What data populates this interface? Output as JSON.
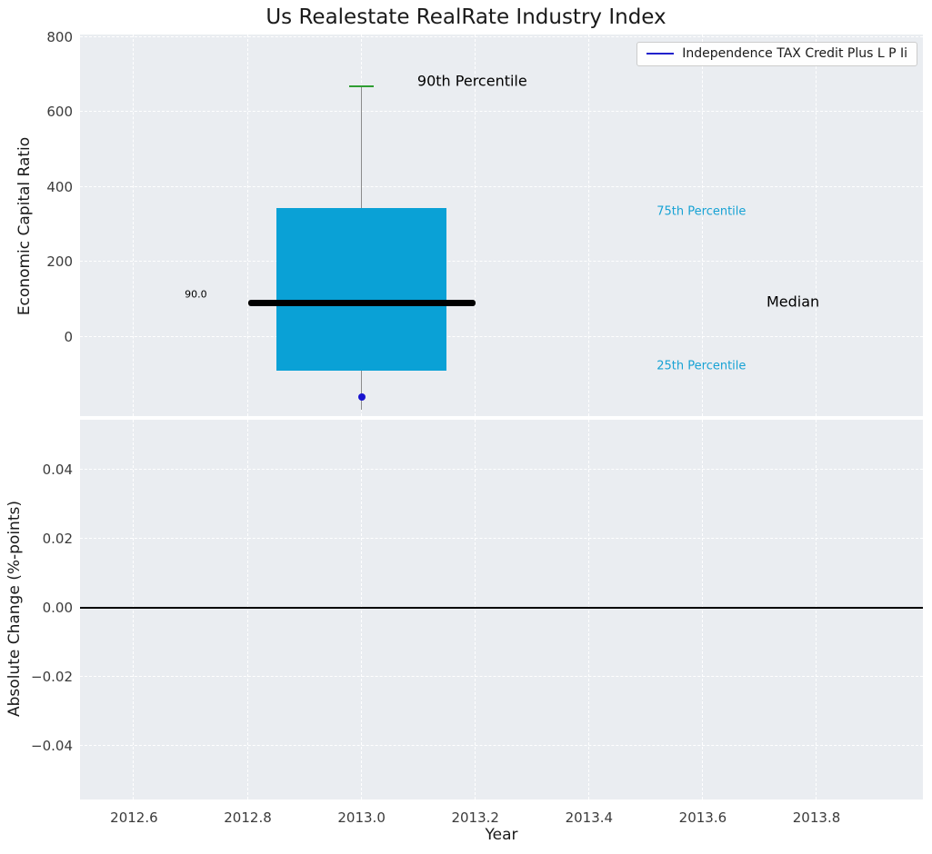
{
  "figure": {
    "background": "#ffffff",
    "axes_background": "#eaedf1",
    "grid_color": "#ffffff",
    "tick_color": "#3b3b3b",
    "text_color": "#1a1a1a"
  },
  "chart_data": [
    {
      "type": "boxplot",
      "title": "Us Realestate RealRate Industry Index",
      "ylabel": "Economic Capital Ratio",
      "xlim": [
        2012.505,
        2013.987
      ],
      "ylim": [
        -211,
        807
      ],
      "grid": true,
      "yticks": [
        {
          "v": 0,
          "label": "0"
        },
        {
          "v": 200,
          "label": "200"
        },
        {
          "v": 400,
          "label": "400"
        },
        {
          "v": 600,
          "label": "600"
        },
        {
          "v": 800,
          "label": "800"
        }
      ],
      "legend": {
        "label": "Independence TAX Credit Plus L P Ii",
        "line_color": "#2222cc",
        "position": "upper right"
      },
      "box": {
        "x": 2013.0,
        "box_halfwidth": 0.15,
        "median_halfwidth": 0.2,
        "cap_halfwidth": 0.021,
        "q1": -90,
        "median": 90.0,
        "q3": 345,
        "whisker_high": 668,
        "whisker_low": -195,
        "outlier": -160,
        "box_color": "#0aa1d6",
        "median_color": "#000000",
        "cap_color": "#2e9d32",
        "whisker_color": "#8c8c8c",
        "outlier_color": "#1813cf"
      },
      "annotations": [
        {
          "text": "90th Percentile",
          "x": 2013.098,
          "y": 684,
          "color": "#000000",
          "size": 16
        },
        {
          "text": "75th Percentile",
          "x": 2013.519,
          "y": 334,
          "color": "#17a2d4",
          "size": 13
        },
        {
          "text": "Median",
          "x": 2013.712,
          "y": 94,
          "color": "#000000",
          "size": 16
        },
        {
          "text": "25th Percentile",
          "x": 2013.519,
          "y": -78,
          "color": "#17a2d4",
          "size": 13
        },
        {
          "text": "90.0",
          "x": 2012.689,
          "y": 114,
          "color": "#000000",
          "size": 11
        }
      ]
    },
    {
      "type": "line",
      "ylabel": "Absolute Change (%-points)",
      "xlabel": "Year",
      "xlim": [
        2012.505,
        2013.987
      ],
      "ylim": [
        -0.0555,
        0.0545
      ],
      "grid": true,
      "zero_line": 0.0,
      "zero_line_color": "#000000",
      "yticks": [
        {
          "v": 0.04,
          "label": "0.04"
        },
        {
          "v": 0.02,
          "label": "0.02"
        },
        {
          "v": 0.0,
          "label": "0.00"
        },
        {
          "v": -0.02,
          "label": "−0.02"
        },
        {
          "v": -0.04,
          "label": "−0.04"
        }
      ],
      "xticks": [
        {
          "v": 2012.6,
          "label": "2012.6"
        },
        {
          "v": 2012.8,
          "label": "2012.8"
        },
        {
          "v": 2013.0,
          "label": "2013.0"
        },
        {
          "v": 2013.2,
          "label": "2013.2"
        },
        {
          "v": 2013.4,
          "label": "2013.4"
        },
        {
          "v": 2013.6,
          "label": "2013.6"
        },
        {
          "v": 2013.8,
          "label": "2013.8"
        }
      ]
    }
  ]
}
